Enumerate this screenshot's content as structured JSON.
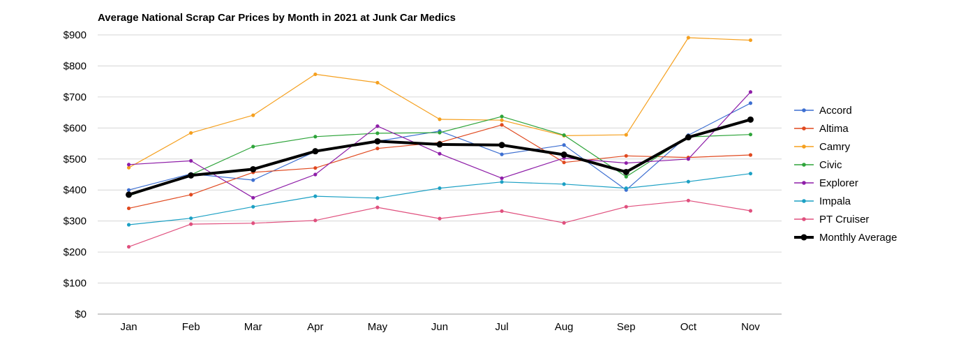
{
  "chart_data": {
    "type": "line",
    "title": "Average National Scrap Car Prices by Month in 2021 at Junk Car Medics",
    "xlabel": "",
    "ylabel": "",
    "categories": [
      "Jan",
      "Feb",
      "Mar",
      "Apr",
      "May",
      "Jun",
      "Jul",
      "Aug",
      "Sep",
      "Oct",
      "Nov"
    ],
    "y_ticks": [
      "$0",
      "$100",
      "$200",
      "$300",
      "$400",
      "$500",
      "$600",
      "$700",
      "$800",
      "$900"
    ],
    "ylim": [
      0,
      900
    ],
    "grid": true,
    "legend_position": "right",
    "series": [
      {
        "name": "Accord",
        "color": "#3d6fd1",
        "values": [
          400,
          452,
          432,
          524,
          557,
          590,
          515,
          545,
          400,
          577,
          680
        ]
      },
      {
        "name": "Altima",
        "color": "#e0491f",
        "values": [
          341,
          385,
          457,
          471,
          534,
          553,
          610,
          489,
          510,
          505,
          513
        ]
      },
      {
        "name": "Camry",
        "color": "#f5a01f",
        "values": [
          472,
          584,
          641,
          773,
          746,
          628,
          625,
          575,
          578,
          891,
          883
        ]
      },
      {
        "name": "Civic",
        "color": "#2ea43a",
        "values": [
          381,
          449,
          540,
          572,
          583,
          585,
          637,
          577,
          443,
          571,
          579
        ]
      },
      {
        "name": "Explorer",
        "color": "#8e1ea8",
        "values": [
          482,
          494,
          375,
          450,
          606,
          517,
          438,
          503,
          487,
          500,
          716
        ]
      },
      {
        "name": "Impala",
        "color": "#1ca0c4",
        "values": [
          288,
          309,
          346,
          380,
          374,
          406,
          426,
          419,
          406,
          427,
          453
        ]
      },
      {
        "name": "PT Cruiser",
        "color": "#e0507e",
        "values": [
          217,
          290,
          293,
          302,
          344,
          308,
          332,
          294,
          346,
          366,
          333
        ]
      },
      {
        "name": "Monthly Average",
        "color": "#000000",
        "values": [
          385,
          447,
          467,
          525,
          557,
          547,
          545,
          514,
          458,
          570,
          627
        ],
        "emphasis": true
      }
    ]
  }
}
